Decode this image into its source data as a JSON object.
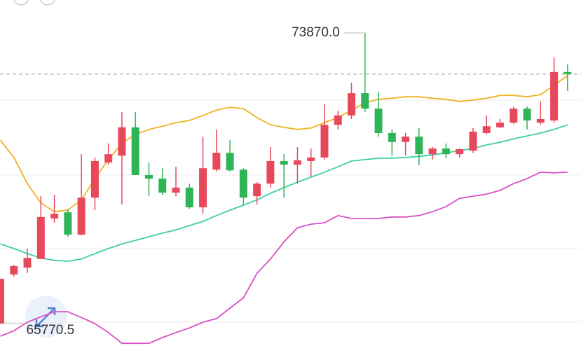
{
  "chart_data": {
    "type": "candlestick",
    "up_color": "#e8495a",
    "down_color": "#2fb457",
    "open": [
      65770.5,
      67140,
      67330,
      67570,
      68700,
      68870,
      68250,
      69280,
      70260,
      70450,
      71240,
      69910,
      69810,
      69420,
      69560,
      69010,
      70060,
      70530,
      70060,
      69320,
      69670,
      70300,
      70200,
      70300,
      70400,
      71310,
      71570,
      72190,
      71760,
      71080,
      70830,
      70980,
      70490,
      70650,
      70490,
      70590,
      71080,
      71240,
      71370,
      71760,
      71370,
      71430,
      72780
    ],
    "high": [
      67020,
      67410,
      67860,
      69320,
      69360,
      68970,
      70490,
      70400,
      70790,
      71660,
      71660,
      70260,
      70100,
      70140,
      69670,
      70980,
      71180,
      70880,
      70100,
      69710,
      70690,
      70490,
      70690,
      70650,
      71900,
      71700,
      72480,
      73870,
      72210,
      71180,
      71080,
      71220,
      70690,
      70790,
      70650,
      71220,
      71570,
      71470,
      71820,
      71820,
      71960,
      73190,
      72990
    ],
    "low": [
      65770.5,
      67080,
      67180,
      67570,
      68580,
      68190,
      68230,
      68930,
      70200,
      69090,
      69910,
      69320,
      69360,
      69320,
      68970,
      68830,
      70010,
      70010,
      69090,
      69090,
      69560,
      69280,
      69670,
      69870,
      70340,
      71180,
      71470,
      71660,
      70980,
      70450,
      70450,
      70180,
      70340,
      70380,
      70400,
      70530,
      71040,
      71220,
      71330,
      71180,
      71310,
      71370,
      72250
    ],
    "close": [
      67020,
      67370,
      67600,
      68740,
      68830,
      68250,
      69280,
      70300,
      70490,
      71240,
      69910,
      69810,
      69420,
      69560,
      69010,
      70100,
      70530,
      70040,
      69280,
      69670,
      70300,
      70200,
      70320,
      70400,
      71310,
      71570,
      72190,
      71760,
      71080,
      70830,
      70980,
      70490,
      70650,
      70490,
      70630,
      71120,
      71270,
      71370,
      71760,
      71430,
      71470,
      72780,
      72720
    ],
    "lines": [
      {
        "color": "#eeb223",
        "values": [
          70880,
          70400,
          69670,
          69130,
          68890,
          68930,
          69220,
          69810,
          70340,
          70790,
          71040,
          71180,
          71270,
          71370,
          71430,
          71570,
          71720,
          71800,
          71760,
          71510,
          71310,
          71240,
          71180,
          71220,
          71370,
          71510,
          71720,
          71920,
          72020,
          72050,
          72090,
          72090,
          72050,
          72020,
          71960,
          72000,
          72050,
          72130,
          72130,
          72090,
          72150,
          72410,
          72680
        ]
      },
      {
        "color": "#3fcf9f",
        "values": [
          67990,
          67860,
          67720,
          67600,
          67530,
          67510,
          67570,
          67720,
          67860,
          67990,
          68090,
          68190,
          68290,
          68380,
          68500,
          68620,
          68780,
          68930,
          69070,
          69220,
          69400,
          69560,
          69710,
          69850,
          69990,
          70140,
          70300,
          70340,
          70380,
          70380,
          70400,
          70430,
          70470,
          70530,
          70590,
          70650,
          70750,
          70820,
          70920,
          71000,
          71080,
          71180,
          71310
        ]
      },
      {
        "color": "#d84fc6",
        "values": [
          65420,
          65570,
          65810,
          65960,
          66100,
          66100,
          65940,
          65770,
          65520,
          65220,
          65220,
          65220,
          65380,
          65520,
          65650,
          65810,
          65910,
          66200,
          66490,
          67170,
          67570,
          68050,
          68440,
          68540,
          68580,
          68780,
          68700,
          68700,
          68700,
          68740,
          68740,
          68780,
          68890,
          69030,
          69260,
          69320,
          69380,
          69480,
          69670,
          69810,
          69990,
          69970,
          69990
        ]
      }
    ],
    "high_label": "73870.0",
    "low_label": "65770.5"
  }
}
